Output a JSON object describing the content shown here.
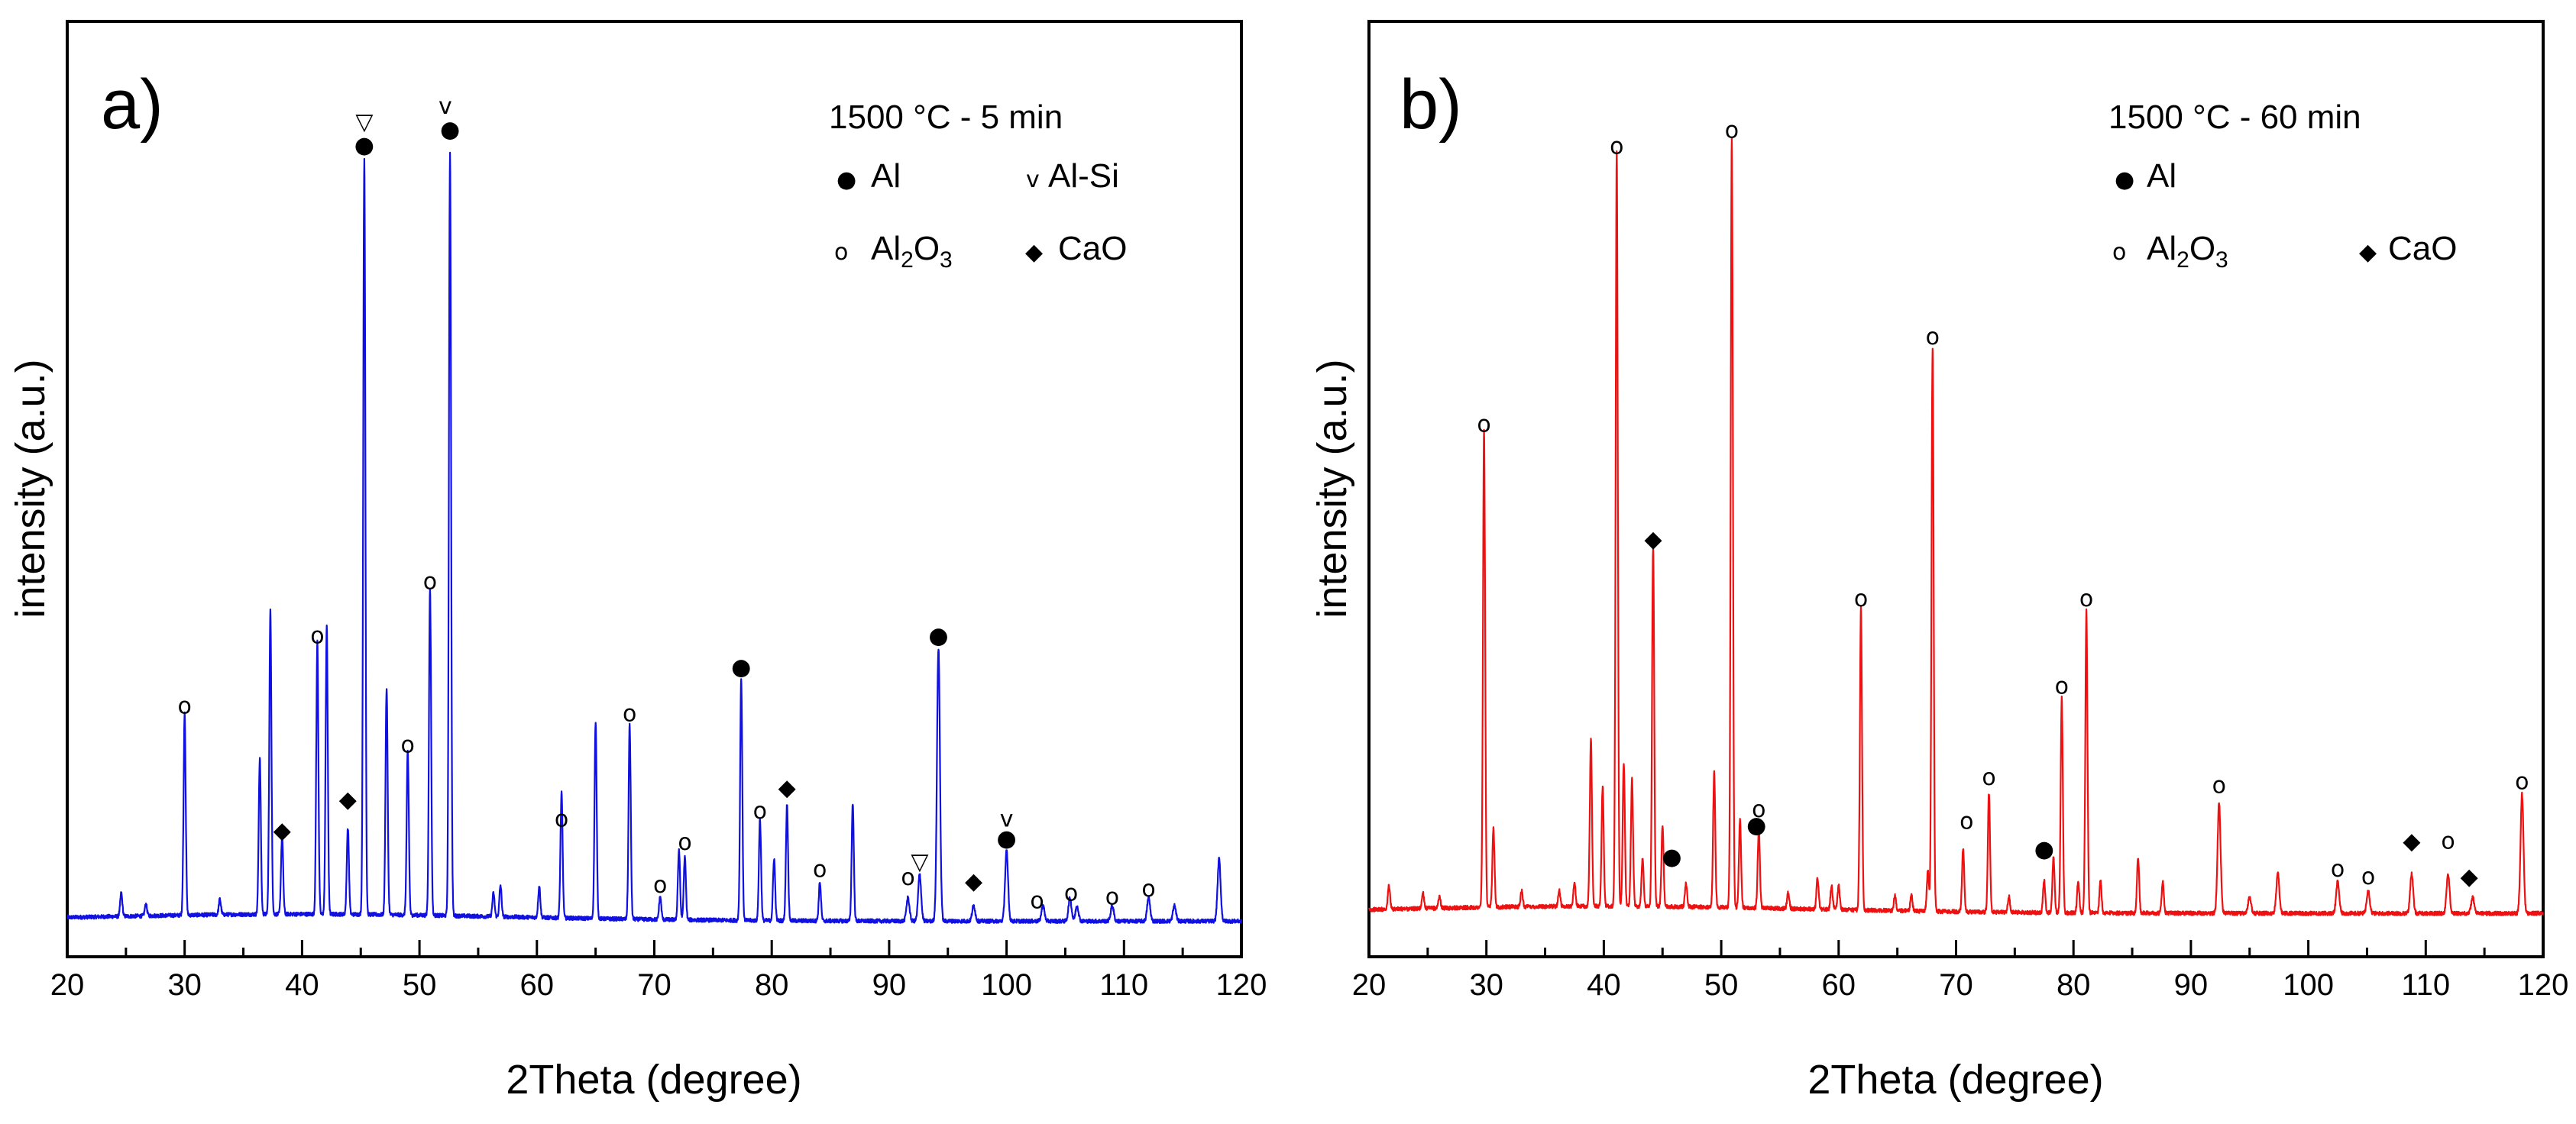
{
  "chart_data": [
    {
      "type": "line",
      "panel_label": "a)",
      "xlabel": "2Theta (degree)",
      "ylabel": "intensity (a.u.)",
      "xlim": [
        20,
        120
      ],
      "ylim": [
        0,
        100
      ],
      "x_ticks": [
        "20",
        "30",
        "40",
        "50",
        "60",
        "70",
        "80",
        "90",
        "100",
        "110",
        "120"
      ],
      "color": "#1010e0",
      "legend": {
        "title": "1500 °C - 5 min",
        "entries": [
          {
            "symbol": "filled-circle",
            "glyph": "●",
            "label": "Al"
          },
          {
            "symbol": "v",
            "glyph": "v",
            "label": "Al-Si"
          },
          {
            "symbol": "open-circle",
            "glyph": "o",
            "label": "Al",
            "sub1": "2",
            "mid": "O",
            "sub2": "3"
          },
          {
            "symbol": "diamond",
            "glyph": "◆",
            "label": "CaO"
          }
        ]
      },
      "peaks": [
        [
          24.6,
          3
        ],
        [
          26.7,
          1.5
        ],
        [
          30.0,
          26
        ],
        [
          33.0,
          2
        ],
        [
          36.4,
          20
        ],
        [
          37.3,
          39
        ],
        [
          38.3,
          10
        ],
        [
          41.3,
          35
        ],
        [
          42.1,
          37
        ],
        [
          43.9,
          11
        ],
        [
          45.3,
          97
        ],
        [
          47.2,
          29
        ],
        [
          49.0,
          21
        ],
        [
          50.9,
          42
        ],
        [
          52.6,
          98
        ],
        [
          56.3,
          3
        ],
        [
          56.9,
          4
        ],
        [
          60.2,
          4
        ],
        [
          62.1,
          16
        ],
        [
          65.0,
          25
        ],
        [
          67.9,
          25
        ],
        [
          70.5,
          3
        ],
        [
          72.1,
          9
        ],
        [
          72.6,
          8
        ],
        [
          77.4,
          31
        ],
        [
          79.0,
          13
        ],
        [
          80.2,
          8
        ],
        [
          81.3,
          15
        ],
        [
          84.1,
          5
        ],
        [
          86.9,
          15
        ],
        [
          91.6,
          3
        ],
        [
          92.6,
          6
        ],
        [
          94.2,
          35
        ],
        [
          97.2,
          2
        ],
        [
          100.0,
          9
        ],
        [
          103.1,
          2
        ],
        [
          105.4,
          3
        ],
        [
          106.0,
          2
        ],
        [
          109.0,
          2
        ],
        [
          112.1,
          3
        ],
        [
          114.3,
          2
        ],
        [
          118.1,
          8
        ]
      ],
      "markers": [
        {
          "x": 30.0,
          "y": 27.5,
          "s": "o"
        },
        {
          "x": 38.3,
          "y": 11.5,
          "s": "◆"
        },
        {
          "x": 41.3,
          "y": 36.5,
          "s": "o"
        },
        {
          "x": 43.9,
          "y": 15.5,
          "s": "◆"
        },
        {
          "x": 45.3,
          "y": 99.5,
          "s": "●"
        },
        {
          "x": 45.3,
          "y": 102.5,
          "s": "▽"
        },
        {
          "x": 49.0,
          "y": 22.5,
          "s": "o"
        },
        {
          "x": 50.9,
          "y": 43.5,
          "s": "o"
        },
        {
          "x": 52.6,
          "y": 101.5,
          "s": "●"
        },
        {
          "x": 52.2,
          "y": 104.5,
          "s": "v"
        },
        {
          "x": 62.1,
          "y": 13.0,
          "s": "o"
        },
        {
          "x": 67.9,
          "y": 26.5,
          "s": "o"
        },
        {
          "x": 70.5,
          "y": 4.5,
          "s": "o"
        },
        {
          "x": 72.6,
          "y": 10.0,
          "s": "o"
        },
        {
          "x": 77.4,
          "y": 32.5,
          "s": "●"
        },
        {
          "x": 79.0,
          "y": 14.0,
          "s": "o"
        },
        {
          "x": 81.3,
          "y": 17.0,
          "s": "◆"
        },
        {
          "x": 84.1,
          "y": 6.5,
          "s": "o"
        },
        {
          "x": 91.6,
          "y": 5.5,
          "s": "o"
        },
        {
          "x": 92.6,
          "y": 7.5,
          "s": "▽"
        },
        {
          "x": 94.2,
          "y": 36.5,
          "s": "●"
        },
        {
          "x": 97.2,
          "y": 5.0,
          "s": "◆"
        },
        {
          "x": 100.0,
          "y": 10.5,
          "s": "●"
        },
        {
          "x": 100.0,
          "y": 13.0,
          "s": "v"
        },
        {
          "x": 102.6,
          "y": 2.5,
          "s": "o"
        },
        {
          "x": 105.5,
          "y": 3.5,
          "s": "o"
        },
        {
          "x": 109.0,
          "y": 3.0,
          "s": "o"
        },
        {
          "x": 112.1,
          "y": 4.0,
          "s": "o"
        }
      ]
    },
    {
      "type": "line",
      "panel_label": "b)",
      "xlabel": "2Theta (degree)",
      "ylabel": "intensity (a.u.)",
      "xlim": [
        20,
        120
      ],
      "ylim": [
        0,
        100
      ],
      "x_ticks": [
        "20",
        "30",
        "40",
        "50",
        "60",
        "70",
        "80",
        "90",
        "100",
        "110",
        "120"
      ],
      "color": "#ee1111",
      "legend": {
        "title": "1500 °C - 60 min",
        "entries": [
          {
            "symbol": "filled-circle",
            "glyph": "●",
            "label": "Al"
          },
          {
            "symbol": "open-circle",
            "glyph": "o",
            "label": "Al",
            "sub1": "2",
            "mid": "O",
            "sub2": "3"
          },
          {
            "symbol": "diamond",
            "glyph": "◆",
            "label": "CaO"
          }
        ]
      },
      "peaks": [
        [
          21.7,
          3
        ],
        [
          24.6,
          2
        ],
        [
          26.0,
          1.5
        ],
        [
          29.8,
          60
        ],
        [
          30.6,
          10
        ],
        [
          33.0,
          2
        ],
        [
          36.2,
          2
        ],
        [
          37.5,
          3
        ],
        [
          38.9,
          21
        ],
        [
          39.9,
          15
        ],
        [
          41.1,
          95
        ],
        [
          41.7,
          18
        ],
        [
          42.4,
          16
        ],
        [
          43.3,
          6
        ],
        [
          44.2,
          45
        ],
        [
          45.0,
          10
        ],
        [
          47.0,
          3
        ],
        [
          49.4,
          17
        ],
        [
          50.9,
          97
        ],
        [
          51.6,
          11
        ],
        [
          53.2,
          10
        ],
        [
          55.7,
          2
        ],
        [
          58.2,
          4
        ],
        [
          59.4,
          3
        ],
        [
          60.0,
          3
        ],
        [
          61.9,
          38
        ],
        [
          64.8,
          2
        ],
        [
          66.2,
          2
        ],
        [
          67.6,
          5
        ],
        [
          68.0,
          71
        ],
        [
          70.6,
          8
        ],
        [
          72.8,
          15
        ],
        [
          74.5,
          2
        ],
        [
          77.5,
          4
        ],
        [
          78.3,
          7
        ],
        [
          79.0,
          27
        ],
        [
          80.4,
          4
        ],
        [
          81.1,
          38
        ],
        [
          82.3,
          4
        ],
        [
          85.5,
          7
        ],
        [
          87.6,
          4
        ],
        [
          92.4,
          14
        ],
        [
          95.0,
          2
        ],
        [
          97.4,
          5
        ],
        [
          102.5,
          4
        ],
        [
          105.1,
          3
        ],
        [
          108.8,
          5
        ],
        [
          111.9,
          5
        ],
        [
          114.0,
          2
        ],
        [
          118.2,
          15
        ]
      ],
      "markers": [
        {
          "x": 29.8,
          "y": 61.5,
          "s": "o"
        },
        {
          "x": 41.1,
          "y": 96.5,
          "s": "o"
        },
        {
          "x": 44.2,
          "y": 47.0,
          "s": "◆"
        },
        {
          "x": 45.8,
          "y": 7.0,
          "s": "●"
        },
        {
          "x": 50.9,
          "y": 98.5,
          "s": "o"
        },
        {
          "x": 53.2,
          "y": 13.0,
          "s": "o"
        },
        {
          "x": 53.0,
          "y": 11.0,
          "s": "●"
        },
        {
          "x": 61.9,
          "y": 39.5,
          "s": "o"
        },
        {
          "x": 68.0,
          "y": 72.5,
          "s": "o"
        },
        {
          "x": 70.9,
          "y": 11.5,
          "s": "o"
        },
        {
          "x": 72.8,
          "y": 17.0,
          "s": "o"
        },
        {
          "x": 77.5,
          "y": 8.0,
          "s": "●"
        },
        {
          "x": 79.0,
          "y": 28.5,
          "s": "o"
        },
        {
          "x": 81.1,
          "y": 39.5,
          "s": "o"
        },
        {
          "x": 92.4,
          "y": 16.0,
          "s": "o"
        },
        {
          "x": 102.5,
          "y": 5.5,
          "s": "o"
        },
        {
          "x": 105.1,
          "y": 4.5,
          "s": "o"
        },
        {
          "x": 108.8,
          "y": 9.0,
          "s": "◆"
        },
        {
          "x": 111.9,
          "y": 9.0,
          "s": "o"
        },
        {
          "x": 113.7,
          "y": 4.5,
          "s": "◆"
        },
        {
          "x": 118.2,
          "y": 16.5,
          "s": "o"
        }
      ]
    }
  ]
}
